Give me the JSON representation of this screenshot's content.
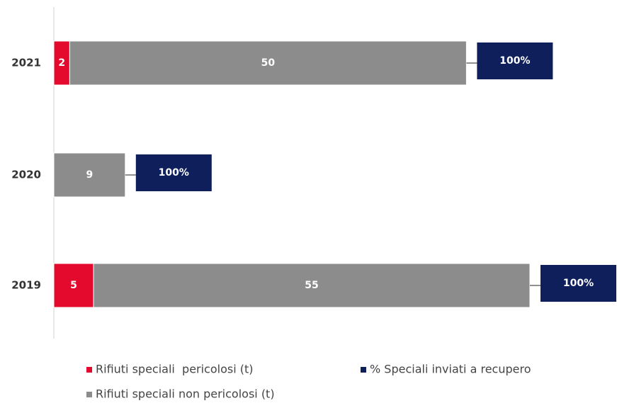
{
  "chart_data": {
    "type": "stacked-bar-horizontal",
    "categories": [
      "2021",
      "2020",
      "2019"
    ],
    "series": [
      {
        "name": "Rifiuti speciali  pericolosi (t)",
        "color": "#e30a2e",
        "values": [
          2,
          null,
          5
        ]
      },
      {
        "name": "Rifiuti speciali non pericolosi (t)",
        "color": "#8c8c8c",
        "values": [
          50,
          9,
          55
        ]
      },
      {
        "name": "% Speciali inviati a recupero",
        "color": "#0e1f5b",
        "values": [
          100,
          100,
          100
        ],
        "value_labels": [
          "100%",
          "100%",
          "100%"
        ]
      }
    ]
  }
}
